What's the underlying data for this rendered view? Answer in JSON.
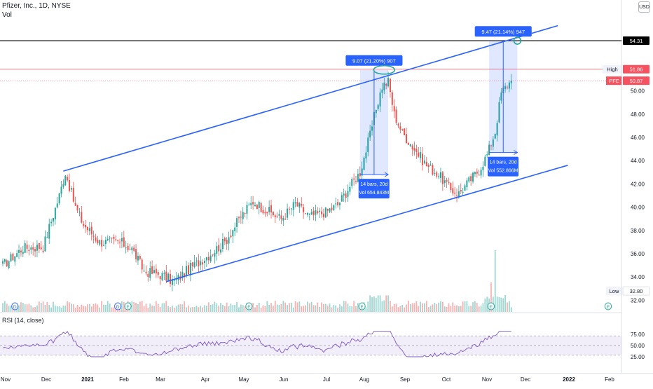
{
  "header": {
    "symbol_line": "Pfizer, Inc., 1D, NYSE",
    "volume_label": "Vol",
    "currency_button": "USD"
  },
  "rsi": {
    "title": "RSI (14, close)",
    "levels": [
      "75.00",
      "50.00",
      "25.00"
    ],
    "upper": 70,
    "lower": 30
  },
  "price_scale": {
    "ticks": [
      "50.00",
      "48.00",
      "46.00",
      "44.00",
      "42.00",
      "40.00",
      "38.00",
      "36.00",
      "34.00",
      "32.00"
    ],
    "tick_values": [
      50,
      48,
      46,
      44,
      42,
      40,
      38,
      36,
      34,
      32
    ],
    "badges": [
      {
        "name": "resistance-line-badge",
        "text": "54.31",
        "value": 54.31,
        "color": "#000000"
      },
      {
        "name": "high-badge",
        "label": "High",
        "text": "51.86",
        "value": 51.86,
        "color": "#f7525f"
      },
      {
        "name": "last-price-badge",
        "label": "PFE",
        "text": "50.87",
        "value": 50.87,
        "color": "#f7525f"
      },
      {
        "name": "low-badge",
        "label": "Low",
        "text": "32.80",
        "value": 32.8,
        "color": "#f7525f"
      }
    ]
  },
  "time_axis": [
    "Nov",
    "Dec",
    "2021",
    "Feb",
    "Mar",
    "Apr",
    "May",
    "Jun",
    "Jul",
    "Aug",
    "Sep",
    "Oct",
    "Nov",
    "Dec",
    "2022",
    "Feb"
  ],
  "event_markers": [
    "D",
    "D",
    "E",
    "E",
    "E",
    "E",
    "E"
  ],
  "annotations": {
    "range1_top": "9.07 (21.20%) 907",
    "range1_bottom_bars": "14 bars, 20d",
    "range1_bottom_vol": "Vol 654.843M",
    "range2_top": "9.47 (21.14%) 947",
    "range2_bottom_bars": "14 bars, 20d",
    "range2_bottom_vol": "Vol 552.866M"
  },
  "colors": {
    "up": "#26a69a",
    "down": "#ef5350",
    "channel": "#2962ff",
    "rsi": "#7e57c2",
    "horizontal": "#000000",
    "high_line": "#f7525f"
  },
  "chart_data": {
    "type": "candlestick",
    "title": "Pfizer, Inc., 1D, NYSE",
    "ylim": [
      31.3,
      56.0
    ],
    "months": [
      "Nov",
      "Dec",
      "2021",
      "Feb",
      "Mar",
      "Apr",
      "May",
      "Jun",
      "Jul",
      "Aug",
      "Sep",
      "Oct",
      "Nov",
      "Dec",
      "2022",
      "Feb"
    ],
    "close_anchors": [
      [
        0,
        35.0
      ],
      [
        10,
        36.5
      ],
      [
        20,
        36.6
      ],
      [
        28,
        41.0
      ],
      [
        31,
        43.0
      ],
      [
        36,
        40.0
      ],
      [
        40,
        38.5
      ],
      [
        48,
        37.0
      ],
      [
        58,
        37.0
      ],
      [
        64,
        36.4
      ],
      [
        70,
        34.5
      ],
      [
        78,
        34.2
      ],
      [
        85,
        33.6
      ],
      [
        93,
        34.8
      ],
      [
        103,
        36.0
      ],
      [
        110,
        37.0
      ],
      [
        118,
        39.2
      ],
      [
        124,
        40.5
      ],
      [
        130,
        39.8
      ],
      [
        138,
        39.0
      ],
      [
        145,
        40.3
      ],
      [
        152,
        39.2
      ],
      [
        160,
        39.6
      ],
      [
        166,
        40.2
      ],
      [
        172,
        41.8
      ],
      [
        177,
        43.0
      ],
      [
        182,
        46.2
      ],
      [
        185,
        48.5
      ],
      [
        188,
        50.4
      ],
      [
        191,
        50.8
      ],
      [
        194,
        48.0
      ],
      [
        198,
        46.4
      ],
      [
        204,
        45.0
      ],
      [
        210,
        43.6
      ],
      [
        216,
        42.8
      ],
      [
        222,
        41.5
      ],
      [
        226,
        41.2
      ],
      [
        230,
        42.0
      ],
      [
        236,
        43.2
      ],
      [
        240,
        44.5
      ],
      [
        244,
        46.5
      ],
      [
        247,
        49.8
      ],
      [
        250,
        50.5
      ],
      [
        252,
        50.87
      ]
    ],
    "channel_upper": {
      "from": {
        "i": 30,
        "v": 43.1
      },
      "to": {
        "i": 275,
        "v": 55.6
      }
    },
    "channel_lower": {
      "from": {
        "i": 81,
        "v": 33.6
      },
      "to": {
        "i": 280,
        "v": 43.6
      }
    },
    "horizontal_line": 54.31,
    "high": 51.86,
    "last": 50.87,
    "low": 32.8,
    "volume_spike_at": 244
  }
}
